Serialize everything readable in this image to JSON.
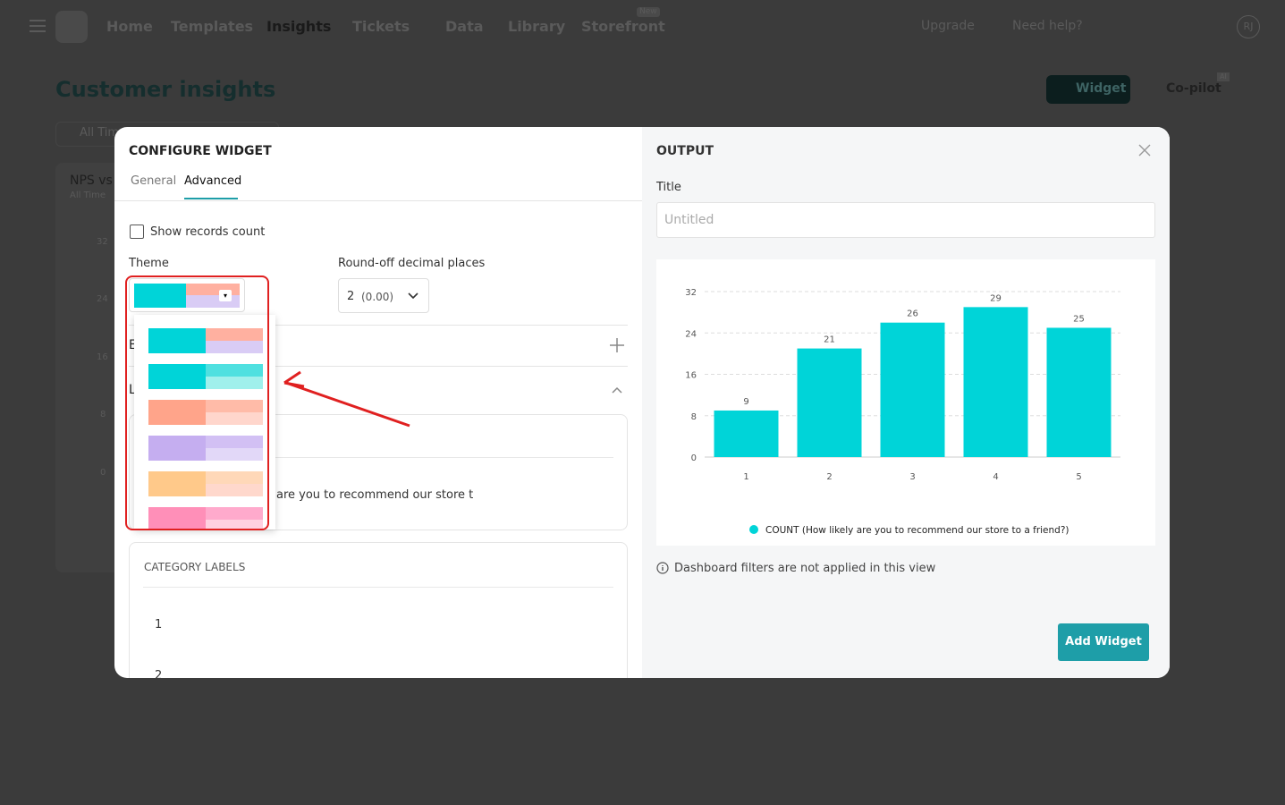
{
  "nav": {
    "items": [
      "Home",
      "Templates",
      "Insights",
      "Tickets",
      "Data",
      "Library",
      "Storefront"
    ],
    "badge": "New",
    "upgrade": "Upgrade",
    "help": "Need help?",
    "avatar": "RJ"
  },
  "page": {
    "title": "Customer insights",
    "widget_button": "Widget",
    "copilot": "Co-pilot",
    "copilot_badge": "AI",
    "filter": "All Time",
    "card_title": "NPS vs",
    "card_subtitle": "All Time",
    "card_ticks": [
      "32",
      "24",
      "16",
      "8",
      "0"
    ]
  },
  "config": {
    "title": "CONFIGURE WIDGET",
    "tabs": [
      "General",
      "Advanced"
    ],
    "checkbox": "Show records count",
    "theme_label": "Theme",
    "round_label": "Round-off decimal places",
    "round_value": "2",
    "round_hint": "(0.00)",
    "section_1": "E",
    "section_2": "L",
    "series_text": "are you to recommend our store t",
    "category_labels_title": "CATEGORY LABELS",
    "category_labels": [
      "1",
      "2"
    ]
  },
  "output": {
    "title": "OUTPUT",
    "title_label": "Title",
    "title_placeholder": "Untitled",
    "note": "Dashboard filters are not applied in this view",
    "add_button": "Add Widget"
  },
  "chart_data": {
    "type": "bar",
    "categories": [
      "1",
      "2",
      "3",
      "4",
      "5"
    ],
    "series": [
      {
        "name": "COUNT (How likely are you to recommend our store to a friend?)",
        "color": "#00d4d8",
        "values": [
          9,
          21,
          26,
          29,
          25
        ]
      }
    ],
    "ylim": [
      0,
      32
    ],
    "yticks": [
      0,
      8,
      16,
      24,
      32
    ],
    "grid": true,
    "legend": "bottom"
  }
}
